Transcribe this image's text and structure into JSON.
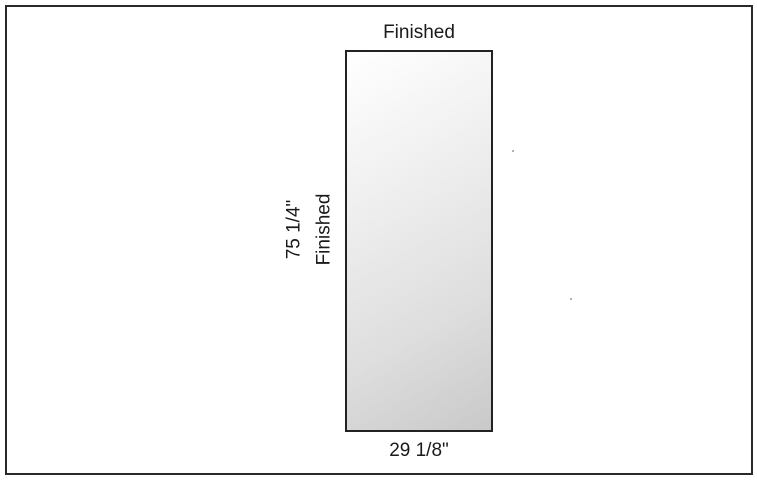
{
  "diagram": {
    "panel": {
      "top_label": "Finished",
      "bottom_label": "29 1/8\"",
      "side_dimension": "75 1/4\"",
      "side_label": "Finished"
    }
  }
}
